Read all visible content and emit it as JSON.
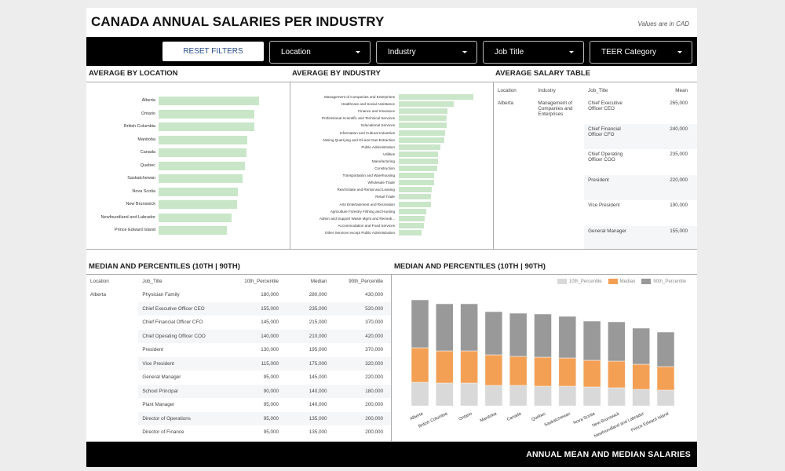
{
  "header": {
    "title": "CANADA ANNUAL SALARIES PER INDUSTRY",
    "currency_note": "Values are in CAD"
  },
  "filters": {
    "reset_label": "RESET FILTERS",
    "dropdowns": [
      {
        "label": "Location",
        "icon": "caret-down-icon"
      },
      {
        "label": "Industry",
        "icon": "caret-down-icon"
      },
      {
        "label": "Job Title",
        "icon": "caret-down-icon"
      },
      {
        "label": "TEER Category",
        "icon": "caret-down-icon"
      }
    ]
  },
  "sections": {
    "avg_location": "AVERAGE BY LOCATION",
    "avg_industry": "AVERAGE BY INDUSTRY",
    "avg_table": "AVERAGE SALARY TABLE",
    "median_table": "MEDIAN AND PERCENTILES (10TH | 90TH)",
    "median_chart": "MEDIAN AND PERCENTILES (10TH | 90TH)"
  },
  "chart_data": [
    {
      "type": "bar",
      "orientation": "horizontal",
      "title": "AVERAGE BY LOCATION",
      "categories": [
        "Alberta",
        "Ontario",
        "British Columbia",
        "Manitoba",
        "Canada",
        "Quebec",
        "Saskatchewan",
        "Nova Scotia",
        "New Brunswick",
        "Newfoundland and Labrador",
        "Prince Edward Island"
      ],
      "values": [
        100,
        95.6,
        95.6,
        88.3,
        87.3,
        85.7,
        83.4,
        78.6,
        77.9,
        72.5,
        68.3
      ],
      "value_note": "relative bar lengths (Alberta = 100); no axis shown",
      "color": "#c9e6c8"
    },
    {
      "type": "bar",
      "orientation": "horizontal",
      "title": "AVERAGE BY INDUSTRY",
      "categories": [
        "Management of Companies and Enterprises",
        "Healthcare and Social Assistance",
        "Finance and Insurance",
        "Professional Scientific and Technical Services",
        "Educational Services",
        "Information and Cultural Industries",
        "Mining Quarrying and Oil and Gas Extraction",
        "Public Administration",
        "Utilities",
        "Manufacturing",
        "Construction",
        "Transportation and Warehousing",
        "Wholesale Trade",
        "Real Estate and Rental and Leasing",
        "Retail Trade",
        "Arts Entertainment and Recreation",
        "Agriculture Forestry Fishing and Hunting",
        "Admin and Support Waste Mgmt and Remedi...",
        "Accommodation and Food Services",
        "Other Services except Public Administration"
      ],
      "values": [
        100,
        74,
        64.9,
        64.2,
        63.9,
        61.8,
        61.1,
        56.1,
        53,
        52.3,
        51.2,
        47.7,
        47,
        44.6,
        43.2,
        42.8,
        36.5,
        34.4,
        33.3,
        30.9
      ],
      "value_note": "relative bar lengths (top = 100); no axis shown",
      "color": "#c9e6c8"
    },
    {
      "type": "bar",
      "stacked": true,
      "title": "MEDIAN AND PERCENTILES (10TH | 90TH)",
      "categories": [
        "Alberta",
        "British Columbia",
        "Ontario",
        "Manitoba",
        "Canada",
        "Quebec",
        "Saskatchewan",
        "Nova Scotia",
        "New Brunswick",
        "Newfoundland and Labrador",
        "Prince Edward Island"
      ],
      "series": [
        {
          "name": "10th_Percentile",
          "color": "#d9d9d9",
          "values": [
            60,
            58,
            58,
            52,
            52,
            50,
            50,
            48,
            46,
            42,
            40
          ]
        },
        {
          "name": "Median",
          "color": "#f4a054",
          "values": [
            88,
            82,
            82,
            78,
            74,
            74,
            72,
            68,
            68,
            64,
            60
          ]
        },
        {
          "name": "90th_Percentile",
          "color": "#999999",
          "values": [
            122,
            120,
            120,
            110,
            110,
            110,
            106,
            100,
            100,
            92,
            88
          ]
        }
      ],
      "value_note": "relative segment heights, no axis shown",
      "legend": "top-right",
      "grid": false
    }
  ],
  "avg_table": {
    "columns": [
      "Location",
      "Industry",
      "Job_Title",
      "Mean"
    ],
    "location": "Alberta",
    "industry": "Management of Companies and Enterprises",
    "rows": [
      {
        "job": "Chief Executive Officer CEO",
        "mean": "265,000"
      },
      {
        "job": "Chief Financial Officer CFO",
        "mean": "240,000"
      },
      {
        "job": "Chief Operating Officer COO",
        "mean": "235,000"
      },
      {
        "job": "President",
        "mean": "220,000"
      },
      {
        "job": "Vice President",
        "mean": "190,000"
      },
      {
        "job": "General Manager",
        "mean": "155,000"
      }
    ]
  },
  "median_table": {
    "columns": [
      "Location",
      "Job_Title",
      "10th_Percentile",
      "Median",
      "90th_Percentile"
    ],
    "location": "Alberta",
    "rows": [
      {
        "job": "Physician Family",
        "p10": "180,000",
        "median": "280,000",
        "p90": "430,000"
      },
      {
        "job": "Chief Executive Officer CEO",
        "p10": "155,000",
        "median": "235,000",
        "p90": "520,000"
      },
      {
        "job": "Chief Financial Officer CFO",
        "p10": "145,000",
        "median": "215,000",
        "p90": "370,000"
      },
      {
        "job": "Chief Operating Officer COO",
        "p10": "140,000",
        "median": "210,000",
        "p90": "420,000"
      },
      {
        "job": "President",
        "p10": "130,000",
        "median": "195,000",
        "p90": "370,000"
      },
      {
        "job": "Vice President",
        "p10": "115,000",
        "median": "175,000",
        "p90": "320,000"
      },
      {
        "job": "General Manager",
        "p10": "95,000",
        "median": "145,000",
        "p90": "220,000"
      },
      {
        "job": "School Principal",
        "p10": "90,000",
        "median": "140,000",
        "p90": "180,000"
      },
      {
        "job": "Plant Manager",
        "p10": "95,000",
        "median": "140,000",
        "p90": "200,000"
      },
      {
        "job": "Director of Operations",
        "p10": "95,000",
        "median": "135,000",
        "p90": "200,000"
      },
      {
        "job": "Director of Finance",
        "p10": "95,000",
        "median": "135,000",
        "p90": "200,000"
      }
    ]
  },
  "footer": {
    "text": "ANNUAL MEAN AND MEDIAN SALARIES"
  }
}
